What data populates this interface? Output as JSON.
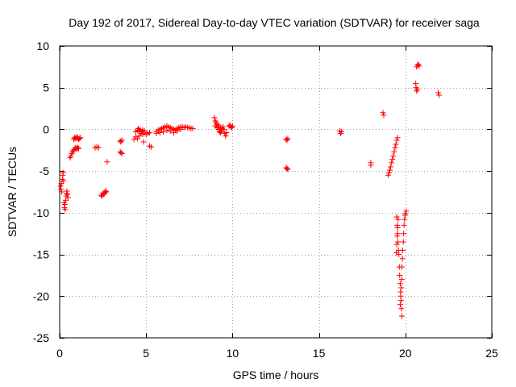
{
  "chart_data": {
    "type": "scatter",
    "title": "Day 192 of 2017, Sidereal Day-to-day VTEC variation (SDTVAR) for receiver saga",
    "xlabel": "GPS time / hours",
    "ylabel": "SDTVAR / TECUs",
    "xlim": [
      0,
      25
    ],
    "ylim": [
      -25,
      10
    ],
    "grid": true,
    "marker": "+",
    "marker_color": "#ff0000",
    "x_ticks": [
      0,
      5,
      10,
      15,
      20,
      25
    ],
    "x_tick_labels": [
      "0",
      "5",
      "10",
      "15",
      "20",
      "25"
    ],
    "y_ticks": [
      -25,
      -20,
      -15,
      -10,
      -5,
      0,
      5,
      10
    ],
    "y_tick_labels": [
      "-25",
      "-20",
      "-15",
      "-10",
      "-5",
      "0",
      "5",
      "10"
    ],
    "series": [
      {
        "name": "SDTVAR",
        "points": [
          [
            0.05,
            -6.8
          ],
          [
            0.08,
            -7.2
          ],
          [
            0.1,
            -6.5
          ],
          [
            0.12,
            -7.5
          ],
          [
            0.15,
            -6.0
          ],
          [
            0.18,
            -5.5
          ],
          [
            0.2,
            -5.2
          ],
          [
            0.22,
            -6.2
          ],
          [
            0.25,
            -8.8
          ],
          [
            0.28,
            -9.4
          ],
          [
            0.3,
            -9.0
          ],
          [
            0.32,
            -9.6
          ],
          [
            0.35,
            -8.5
          ],
          [
            0.38,
            -8.0
          ],
          [
            0.4,
            -7.7
          ],
          [
            0.42,
            -7.4
          ],
          [
            0.45,
            -7.8
          ],
          [
            0.48,
            -8.2
          ],
          [
            0.6,
            -3.4
          ],
          [
            0.65,
            -3.2
          ],
          [
            0.7,
            -2.9
          ],
          [
            0.75,
            -2.7
          ],
          [
            0.8,
            -2.5
          ],
          [
            0.85,
            -2.4
          ],
          [
            0.9,
            -2.2
          ],
          [
            0.95,
            -2.3
          ],
          [
            1.0,
            -2.3
          ],
          [
            1.05,
            -2.2
          ],
          [
            1.1,
            -2.3
          ],
          [
            0.82,
            -1.2
          ],
          [
            0.86,
            -1.0
          ],
          [
            0.9,
            -1.1
          ],
          [
            0.95,
            -0.9
          ],
          [
            1.0,
            -1.1
          ],
          [
            1.05,
            -1.0
          ],
          [
            1.1,
            -1.2
          ],
          [
            1.15,
            -1.1
          ],
          [
            1.2,
            -1.0
          ],
          [
            2.05,
            -2.2
          ],
          [
            2.15,
            -2.1
          ],
          [
            2.25,
            -2.2
          ],
          [
            2.4,
            -7.9
          ],
          [
            2.45,
            -8.0
          ],
          [
            2.5,
            -7.7
          ],
          [
            2.55,
            -7.8
          ],
          [
            2.6,
            -7.6
          ],
          [
            2.65,
            -7.4
          ],
          [
            2.7,
            -7.5
          ],
          [
            2.75,
            -3.9
          ],
          [
            3.5,
            -1.4
          ],
          [
            3.55,
            -1.5
          ],
          [
            3.6,
            -1.3
          ],
          [
            3.5,
            -2.7
          ],
          [
            3.55,
            -2.8
          ],
          [
            3.6,
            -2.9
          ],
          [
            4.3,
            -1.2
          ],
          [
            4.4,
            -0.9
          ],
          [
            4.5,
            -1.1
          ],
          [
            4.6,
            -0.8
          ],
          [
            4.7,
            -0.5
          ],
          [
            4.8,
            -0.6
          ],
          [
            4.9,
            -0.4
          ],
          [
            5.0,
            -0.6
          ],
          [
            5.1,
            -0.5
          ],
          [
            5.2,
            -0.4
          ],
          [
            4.4,
            -0.3
          ],
          [
            4.5,
            -0.1
          ],
          [
            4.55,
            0.1
          ],
          [
            4.6,
            -0.2
          ],
          [
            4.65,
            0.0
          ],
          [
            4.7,
            -0.3
          ],
          [
            4.8,
            -0.1
          ],
          [
            4.9,
            -0.2
          ],
          [
            4.85,
            -1.5
          ],
          [
            5.2,
            -2.0
          ],
          [
            5.3,
            -2.1
          ],
          [
            5.6,
            -0.3
          ],
          [
            5.7,
            -0.1
          ],
          [
            5.8,
            0.0
          ],
          [
            5.9,
            0.1
          ],
          [
            6.0,
            0.2
          ],
          [
            6.1,
            0.3
          ],
          [
            6.2,
            0.4
          ],
          [
            6.3,
            0.3
          ],
          [
            6.4,
            0.2
          ],
          [
            6.5,
            0.1
          ],
          [
            6.6,
            0.0
          ],
          [
            6.7,
            -0.1
          ],
          [
            6.8,
            0.1
          ],
          [
            6.9,
            0.2
          ],
          [
            7.0,
            0.3
          ],
          [
            7.1,
            0.3
          ],
          [
            7.2,
            0.2
          ],
          [
            7.3,
            0.3
          ],
          [
            7.4,
            0.2
          ],
          [
            7.5,
            0.2
          ],
          [
            7.6,
            0.1
          ],
          [
            7.7,
            0.1
          ],
          [
            5.6,
            -0.5
          ],
          [
            5.8,
            -0.4
          ],
          [
            6.0,
            -0.3
          ],
          [
            6.2,
            -0.1
          ],
          [
            6.4,
            -0.2
          ],
          [
            6.6,
            -0.4
          ],
          [
            6.8,
            -0.2
          ],
          [
            7.0,
            0.0
          ],
          [
            8.95,
            1.4
          ],
          [
            9.0,
            1.0
          ],
          [
            9.05,
            0.8
          ],
          [
            9.1,
            0.6
          ],
          [
            9.15,
            0.3
          ],
          [
            9.2,
            0.0
          ],
          [
            9.25,
            -0.3
          ],
          [
            9.3,
            -0.4
          ],
          [
            9.35,
            -0.2
          ],
          [
            9.4,
            0.1
          ],
          [
            9.45,
            0.3
          ],
          [
            9.5,
            0.0
          ],
          [
            9.55,
            -0.5
          ],
          [
            9.6,
            -0.8
          ],
          [
            9.65,
            -0.4
          ],
          [
            9.0,
            0.4
          ],
          [
            9.1,
            0.2
          ],
          [
            9.2,
            0.5
          ],
          [
            9.3,
            0.2
          ],
          [
            9.8,
            0.4
          ],
          [
            9.85,
            0.5
          ],
          [
            9.9,
            0.3
          ],
          [
            9.95,
            0.2
          ],
          [
            10.0,
            0.4
          ],
          [
            13.1,
            -1.2
          ],
          [
            13.15,
            -1.3
          ],
          [
            13.2,
            -1.1
          ],
          [
            13.1,
            -4.6
          ],
          [
            13.15,
            -4.7
          ],
          [
            13.2,
            -4.8
          ],
          [
            16.2,
            -0.2
          ],
          [
            16.25,
            -0.5
          ],
          [
            16.3,
            -0.3
          ],
          [
            18.0,
            -4.0
          ],
          [
            18.0,
            -4.3
          ],
          [
            18.7,
            2.0
          ],
          [
            18.75,
            1.7
          ],
          [
            19.0,
            -5.5
          ],
          [
            19.05,
            -5.2
          ],
          [
            19.1,
            -4.9
          ],
          [
            19.15,
            -4.5
          ],
          [
            19.2,
            -4.0
          ],
          [
            19.25,
            -3.6
          ],
          [
            19.3,
            -3.2
          ],
          [
            19.35,
            -2.7
          ],
          [
            19.4,
            -2.2
          ],
          [
            19.45,
            -1.8
          ],
          [
            19.5,
            -1.3
          ],
          [
            19.55,
            -1.0
          ],
          [
            19.5,
            -10.5
          ],
          [
            19.52,
            -11.5
          ],
          [
            19.55,
            -12.5
          ],
          [
            19.57,
            -13.5
          ],
          [
            19.6,
            -14.5
          ],
          [
            19.62,
            -15.0
          ],
          [
            19.48,
            -14.8
          ],
          [
            19.5,
            -13.8
          ],
          [
            19.52,
            -12.8
          ],
          [
            19.55,
            -11.8
          ],
          [
            19.58,
            -10.8
          ],
          [
            19.65,
            -16.5
          ],
          [
            19.67,
            -17.5
          ],
          [
            19.7,
            -18.5
          ],
          [
            19.72,
            -19.5
          ],
          [
            19.75,
            -20.5
          ],
          [
            19.77,
            -21.5
          ],
          [
            19.8,
            -22.4
          ],
          [
            19.7,
            -21.0
          ],
          [
            19.73,
            -20.0
          ],
          [
            19.76,
            -19.0
          ],
          [
            19.79,
            -18.0
          ],
          [
            19.8,
            -16.5
          ],
          [
            19.83,
            -15.5
          ],
          [
            19.85,
            -14.5
          ],
          [
            19.88,
            -13.5
          ],
          [
            19.9,
            -12.5
          ],
          [
            19.92,
            -11.5
          ],
          [
            19.95,
            -10.8
          ],
          [
            19.98,
            -10.3
          ],
          [
            20.0,
            -10.1
          ],
          [
            20.05,
            -9.8
          ],
          [
            20.6,
            5.5
          ],
          [
            20.62,
            5.0
          ],
          [
            20.65,
            4.6
          ],
          [
            20.7,
            4.8
          ],
          [
            20.65,
            7.5
          ],
          [
            20.7,
            7.7
          ],
          [
            20.75,
            7.8
          ],
          [
            20.8,
            7.6
          ],
          [
            21.9,
            4.4
          ],
          [
            21.95,
            4.1
          ]
        ]
      }
    ]
  }
}
